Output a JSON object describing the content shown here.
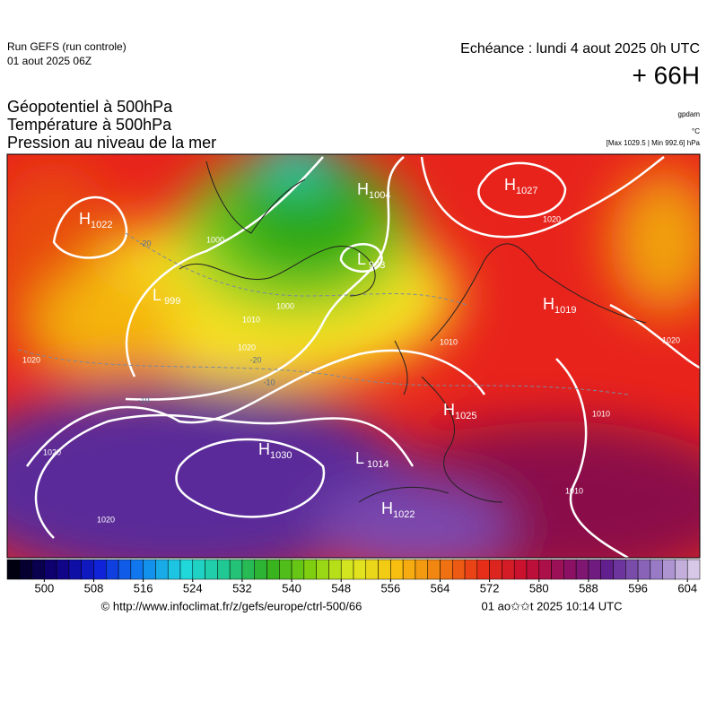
{
  "header": {
    "run": "Run GEFS (run controle)",
    "run_date": "01 aout 2025 06Z",
    "valid": "Echéance : lundi 4 aout 2025 0h UTC",
    "lead": "+ 66H"
  },
  "fields": {
    "geopotential": "Géopotentiel à 500hPa",
    "temperature": "Température à 500hPa",
    "pressure": "Pression au niveau de la mer"
  },
  "units": {
    "geopotential": "gpdam",
    "temperature": "°C",
    "pressure": "[Max 1029.5 | Min 992.6] hPa"
  },
  "pressure_centers": [
    {
      "letter": "H",
      "value": 1022
    },
    {
      "letter": "H",
      "value": 1004
    },
    {
      "letter": "L",
      "value": 993
    },
    {
      "letter": "H",
      "value": 1027
    },
    {
      "letter": "H",
      "value": 1019
    },
    {
      "letter": "H",
      "value": 1025
    },
    {
      "letter": "H",
      "value": 1030
    },
    {
      "letter": "L",
      "value": 1014
    },
    {
      "letter": "H",
      "value": 1022
    },
    {
      "letter": "L",
      "value": 999
    }
  ],
  "isobar_labels": [
    1000,
    1010,
    1020,
    1020,
    1000,
    1020,
    1020,
    1010,
    1010,
    1020,
    1010,
    1020
  ],
  "temperature_labels": [
    -20,
    -10,
    -20,
    -10
  ],
  "colorbar": {
    "lim": [
      494,
      606
    ],
    "ticks": [
      500,
      508,
      516,
      524,
      532,
      540,
      548,
      556,
      564,
      572,
      580,
      588,
      596,
      604
    ]
  },
  "footer": {
    "source": "© http://www.infoclimat.fr/z/gefs/europe/ctrl-500/66",
    "generated": "01 ao✩✩t 2025 10:14 UTC"
  }
}
